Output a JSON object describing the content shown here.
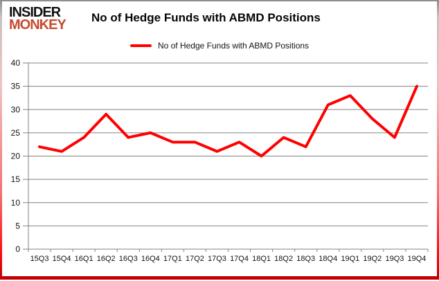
{
  "logo": {
    "line1": "INSIDER",
    "line2": "MONKEY",
    "color": "#c7492f"
  },
  "header": {
    "title": "No of Hedge Funds with ABMD Positions"
  },
  "legend": {
    "label": "No of Hedge Funds with ABMD Positions",
    "line_color": "#ff0000"
  },
  "chart_data": {
    "type": "line",
    "title": "No of Hedge Funds with ABMD Positions",
    "categories": [
      "15Q3",
      "15Q4",
      "16Q1",
      "16Q2",
      "16Q3",
      "16Q4",
      "17Q1",
      "17Q2",
      "17Q3",
      "17Q4",
      "18Q1",
      "18Q2",
      "18Q3",
      "18Q4",
      "19Q1",
      "19Q2",
      "19Q3",
      "19Q4"
    ],
    "series": [
      {
        "name": "No of Hedge Funds with ABMD Positions",
        "color": "#ff0000",
        "values": [
          22,
          21,
          24,
          29,
          24,
          25,
          23,
          23,
          21,
          23,
          20,
          24,
          22,
          31,
          33,
          28,
          24,
          35
        ]
      }
    ],
    "xlabel": "",
    "ylabel": "",
    "ylim": [
      0,
      40
    ],
    "ytick_step": 5,
    "grid": "horizontal",
    "gridline_color": "#808080",
    "legend_position": "top"
  }
}
